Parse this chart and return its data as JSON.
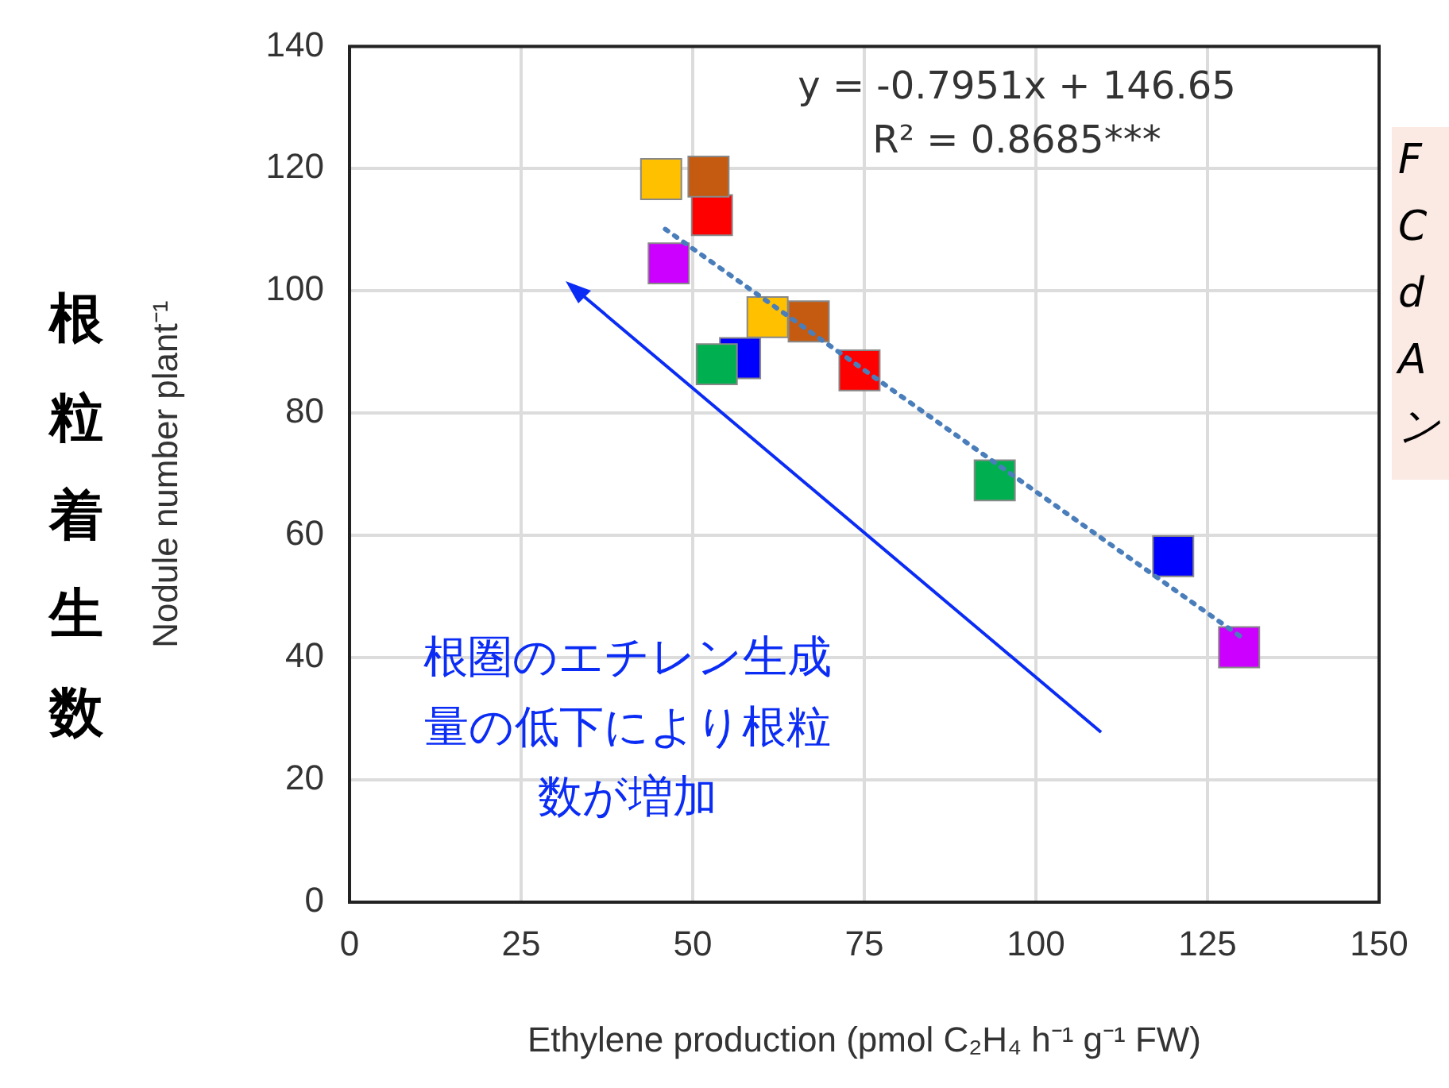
{
  "chart_data": {
    "type": "scatter",
    "xlabel": "Ethylene production (pmol C₂H₄ h⁻¹ g⁻¹ FW)",
    "ylabel": "Nodule number plant⁻¹",
    "xlim": [
      0,
      150
    ],
    "xticks": [
      0,
      25,
      50,
      75,
      100,
      125,
      150
    ],
    "ylim": [
      0,
      140
    ],
    "yticks": [
      0,
      20,
      40,
      60,
      80,
      100,
      120,
      140
    ],
    "grid": true,
    "marker": "square",
    "series": [
      {
        "type": "scatter",
        "x": [
          45.4,
          52.8,
          52.3,
          46.5,
          56.9,
          53.5,
          60.9,
          66.9,
          74.3,
          94,
          120,
          129.6
        ],
        "values": [
          118.3,
          112.4,
          118.7,
          104.5,
          89,
          88,
          95.7,
          95,
          87,
          69,
          56.6,
          41.7
        ],
        "colors": [
          "#ffc000",
          "#ff0000",
          "#c55a11",
          "#cc00ff",
          "#0000ff",
          "#00b050",
          "#ffc000",
          "#c55a11",
          "#ff0000",
          "#00b050",
          "#0000ff",
          "#cc00ff"
        ]
      },
      {
        "type": "line",
        "x": [
          46,
          130
        ],
        "values": [
          110.1,
          43.3
        ],
        "color": "#4a7ebb",
        "line_style": "dotted",
        "marker": "none"
      }
    ],
    "annotations": [
      "y = -0.7951x + 146.65",
      "R² = 0.8685***",
      "根圏のエチレン生成量の低下により根粒数が増加",
      "根粒着生数",
      "F\nC\nd\nA\nン"
    ]
  }
}
